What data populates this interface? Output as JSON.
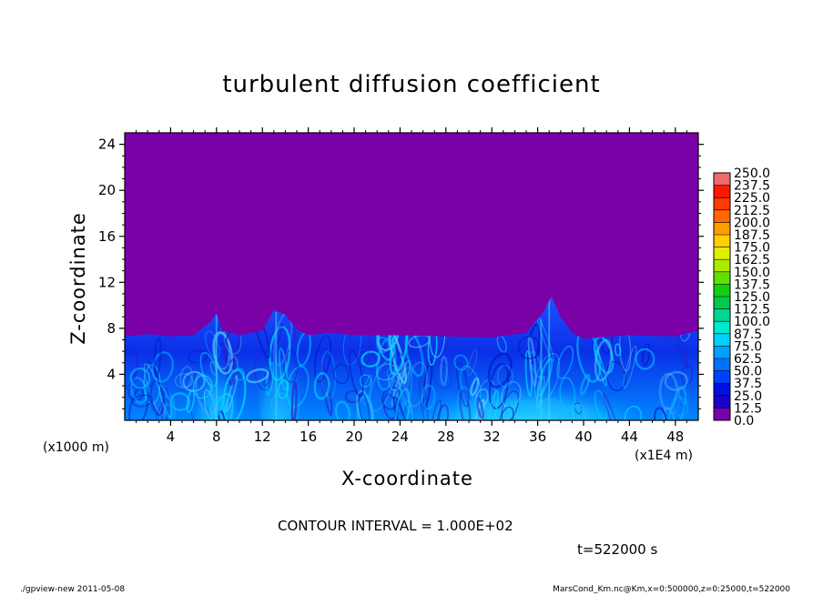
{
  "chart_data": {
    "type": "heatmap",
    "title": "turbulent diffusion coefficient",
    "xlabel": "X-coordinate",
    "ylabel": "Z-coordinate",
    "x_unit_label": "(x1E4 m)",
    "y_unit_label": "(x1000 m)",
    "xlim": [
      0,
      50
    ],
    "ylim": [
      0,
      25
    ],
    "x_ticks": [
      "4",
      "8",
      "12",
      "16",
      "20",
      "24",
      "28",
      "32",
      "36",
      "40",
      "44",
      "48"
    ],
    "y_ticks": [
      "4",
      "8",
      "12",
      "16",
      "20",
      "24"
    ],
    "colorbar_levels": [
      "0.0",
      "12.5",
      "25.0",
      "37.5",
      "50.0",
      "62.5",
      "75.0",
      "87.5",
      "100.0",
      "112.5",
      "125.0",
      "137.5",
      "150.0",
      "162.5",
      "175.0",
      "187.5",
      "200.0",
      "212.5",
      "225.0",
      "237.5",
      "250.0"
    ],
    "colorbar_colors": [
      "#7a00a8",
      "#1a00c8",
      "#0010e0",
      "#0040ff",
      "#0070ff",
      "#00a0ff",
      "#00d0ff",
      "#00e8d0",
      "#00d890",
      "#00c850",
      "#10d010",
      "#60e000",
      "#a8ec00",
      "#e0f000",
      "#ffd000",
      "#ff9c00",
      "#ff6a00",
      "#ff3a00",
      "#ff1800",
      "#f06a6a"
    ],
    "background_value_color": "#7a00a8",
    "boundary_layer_top": {
      "x": [
        0,
        2,
        4,
        6,
        7.5,
        8,
        8.5,
        10,
        12,
        13,
        14,
        15,
        16,
        18,
        20,
        24,
        28,
        32,
        35,
        36.5,
        37.2,
        38,
        39,
        40,
        44,
        48,
        50
      ],
      "y": [
        7.3,
        7.5,
        7.3,
        7.4,
        8.6,
        9.3,
        7.8,
        7.4,
        7.8,
        9.6,
        9.2,
        7.9,
        7.4,
        7.6,
        7.4,
        7.4,
        7.3,
        7.2,
        7.6,
        9.4,
        10.8,
        9.0,
        7.6,
        7.1,
        7.4,
        7.3,
        7.8
      ]
    },
    "annotation": "CONTOUR INTERVAL = 1.000E+02",
    "time_label": "t=522000 s"
  },
  "footer": {
    "left": "./gpview-new  2011-05-08",
    "right": "MarsCond_Km.nc@Km,x=0:500000,z=0:25000,t=522000"
  }
}
